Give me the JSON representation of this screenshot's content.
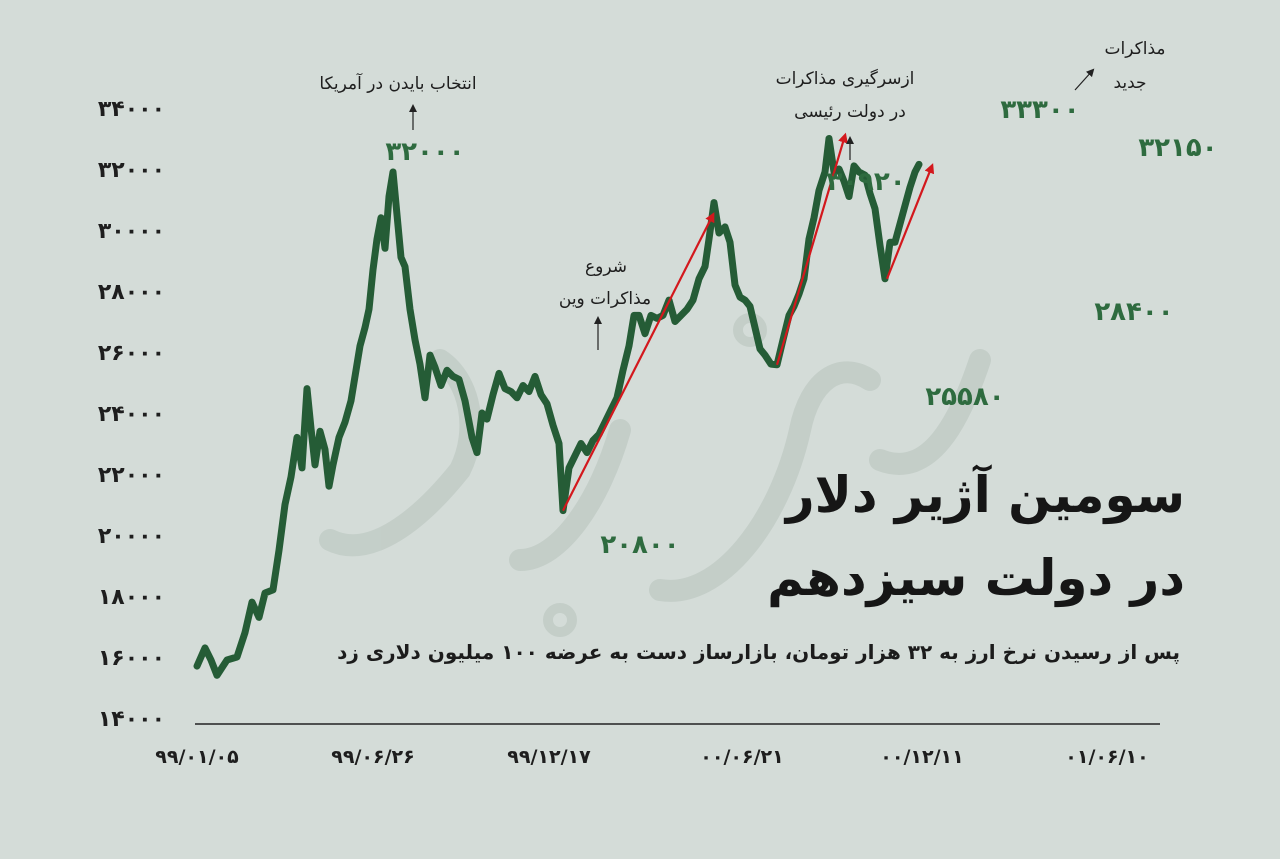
{
  "chart_data": {
    "type": "line",
    "title_line1": "سومین آژیر دلار",
    "title_line2": "در دولت سیزدهم",
    "subtitle": "پس از رسیدن نرخ ارز به ۳۲ هزار تومان، بازارساز دست به عرضه ۱۰۰ میلیون دلاری زد",
    "ylim": [
      14000,
      34000
    ],
    "yticks": [
      14000,
      16000,
      18000,
      20000,
      22000,
      24000,
      26000,
      28000,
      30000,
      32000,
      34000
    ],
    "ytick_labels": [
      "۱۴۰۰۰",
      "۱۶۰۰۰",
      "۱۸۰۰۰",
      "۲۰۰۰۰",
      "۲۲۰۰۰",
      "۲۴۰۰۰",
      "۲۶۰۰۰",
      "۲۸۰۰۰",
      "۳۰۰۰۰",
      "۳۲۰۰۰",
      "۳۴۰۰۰"
    ],
    "xticks": [
      {
        "label": "۹۹/۰۱/۰۵",
        "pos": 0
      },
      {
        "label": "۹۹/۰۶/۲۶",
        "pos": 0.176
      },
      {
        "label": "۹۹/۱۲/۱۷",
        "pos": 0.352
      },
      {
        "label": "۰۰/۰۶/۲۱",
        "pos": 0.545
      },
      {
        "label": "۰۰/۱۲/۱۱",
        "pos": 0.725
      },
      {
        "label": "۰۱/۰۶/۱۰",
        "pos": 0.91
      }
    ],
    "series": [
      {
        "color": "#255c36",
        "points": [
          [
            0.0,
            15700
          ],
          [
            0.008,
            16300
          ],
          [
            0.014,
            15900
          ],
          [
            0.02,
            15400
          ],
          [
            0.03,
            15900
          ],
          [
            0.04,
            16000
          ],
          [
            0.048,
            16800
          ],
          [
            0.055,
            17800
          ],
          [
            0.062,
            17300
          ],
          [
            0.068,
            18100
          ],
          [
            0.076,
            18200
          ],
          [
            0.082,
            19500
          ],
          [
            0.088,
            21000
          ],
          [
            0.094,
            21900
          ],
          [
            0.1,
            23200
          ],
          [
            0.105,
            22200
          ],
          [
            0.11,
            24800
          ],
          [
            0.114,
            23500
          ],
          [
            0.118,
            22300
          ],
          [
            0.123,
            23400
          ],
          [
            0.128,
            22800
          ],
          [
            0.132,
            21600
          ],
          [
            0.136,
            22300
          ],
          [
            0.142,
            23200
          ],
          [
            0.148,
            23700
          ],
          [
            0.154,
            24400
          ],
          [
            0.158,
            25200
          ],
          [
            0.163,
            26200
          ],
          [
            0.168,
            26800
          ],
          [
            0.172,
            27400
          ],
          [
            0.176,
            28700
          ],
          [
            0.18,
            29700
          ],
          [
            0.184,
            30400
          ],
          [
            0.188,
            29400
          ],
          [
            0.192,
            31100
          ],
          [
            0.196,
            31900
          ],
          [
            0.2,
            30500
          ],
          [
            0.204,
            29100
          ],
          [
            0.208,
            28800
          ],
          [
            0.213,
            27400
          ],
          [
            0.218,
            26400
          ],
          [
            0.223,
            25600
          ],
          [
            0.228,
            24500
          ],
          [
            0.233,
            25900
          ],
          [
            0.238,
            25500
          ],
          [
            0.244,
            24900
          ],
          [
            0.25,
            25400
          ],
          [
            0.256,
            25200
          ],
          [
            0.262,
            25100
          ],
          [
            0.268,
            24400
          ],
          [
            0.275,
            23200
          ],
          [
            0.28,
            22700
          ],
          [
            0.285,
            24000
          ],
          [
            0.29,
            23800
          ],
          [
            0.296,
            24600
          ],
          [
            0.302,
            25300
          ],
          [
            0.308,
            24800
          ],
          [
            0.314,
            24700
          ],
          [
            0.32,
            24500
          ],
          [
            0.326,
            24900
          ],
          [
            0.332,
            24700
          ],
          [
            0.338,
            25200
          ],
          [
            0.344,
            24600
          ],
          [
            0.35,
            24300
          ],
          [
            0.356,
            23600
          ],
          [
            0.362,
            23000
          ],
          [
            0.366,
            20800
          ],
          [
            0.372,
            22200
          ],
          [
            0.378,
            22600
          ],
          [
            0.384,
            23000
          ],
          [
            0.39,
            22700
          ],
          [
            0.396,
            23100
          ],
          [
            0.402,
            23300
          ],
          [
            0.408,
            23700
          ],
          [
            0.414,
            24100
          ],
          [
            0.42,
            24500
          ],
          [
            0.426,
            25400
          ],
          [
            0.432,
            26200
          ],
          [
            0.437,
            27200
          ],
          [
            0.442,
            27200
          ],
          [
            0.448,
            26600
          ],
          [
            0.454,
            27200
          ],
          [
            0.46,
            27100
          ],
          [
            0.466,
            27200
          ],
          [
            0.472,
            27700
          ],
          [
            0.478,
            27000
          ],
          [
            0.484,
            27200
          ],
          [
            0.49,
            27400
          ],
          [
            0.496,
            27700
          ],
          [
            0.502,
            28400
          ],
          [
            0.508,
            28800
          ],
          [
            0.512,
            29700
          ],
          [
            0.517,
            30900
          ],
          [
            0.522,
            29900
          ],
          [
            0.528,
            30100
          ],
          [
            0.533,
            29600
          ],
          [
            0.538,
            28200
          ],
          [
            0.543,
            27800
          ],
          [
            0.548,
            27700
          ],
          [
            0.553,
            27500
          ],
          [
            0.558,
            26800
          ],
          [
            0.563,
            26100
          ],
          [
            0.568,
            25900
          ],
          [
            0.574,
            25600
          ],
          [
            0.58,
            25580
          ],
          [
            0.586,
            26400
          ],
          [
            0.592,
            27200
          ],
          [
            0.597,
            27500
          ],
          [
            0.602,
            27900
          ],
          [
            0.607,
            28400
          ],
          [
            0.612,
            29700
          ],
          [
            0.617,
            30400
          ],
          [
            0.622,
            31300
          ],
          [
            0.628,
            31900
          ],
          [
            0.632,
            33000
          ],
          [
            0.637,
            31900
          ],
          [
            0.642,
            32000
          ],
          [
            0.647,
            31600
          ],
          [
            0.652,
            31100
          ],
          [
            0.657,
            32100
          ],
          [
            0.662,
            31900
          ],
          [
            0.668,
            31800
          ],
          [
            0.673,
            31200
          ],
          [
            0.678,
            30700
          ],
          [
            0.683,
            29500
          ],
          [
            0.688,
            28400
          ],
          [
            0.693,
            29600
          ],
          [
            0.698,
            29600
          ],
          [
            0.703,
            30200
          ],
          [
            0.708,
            30800
          ],
          [
            0.713,
            31400
          ],
          [
            0.718,
            31900
          ],
          [
            0.722,
            32150
          ]
        ]
      }
    ],
    "annotations": [
      {
        "value": "۳۲۰۰۰",
        "label": "انتخاب بایدن در آمریکا"
      },
      {
        "value": "۲۰۸۰۰"
      },
      {
        "value": "",
        "label_line1": "شروع",
        "label_line2": "مذاکرات وین"
      },
      {
        "value": "۳۰۹۲۰",
        "label_line1": "ازسرگیری مذاکرات",
        "label_line2": "در دولت رئیسی"
      },
      {
        "value": "۲۵۵۸۰"
      },
      {
        "value": "۳۳۳۰۰"
      },
      {
        "value": "",
        "label_line1": "مذاکرات",
        "label_line2": "جدید"
      },
      {
        "value": "۲۸۴۰۰"
      },
      {
        "value": "۳۲۱۵۰"
      }
    ],
    "trend_arrows": 3,
    "colors": {
      "line": "#255c36",
      "label": "#2e6b3f",
      "arrow": "#d3181d",
      "axis": "#222222",
      "bg": "#d4dcd8"
    }
  }
}
